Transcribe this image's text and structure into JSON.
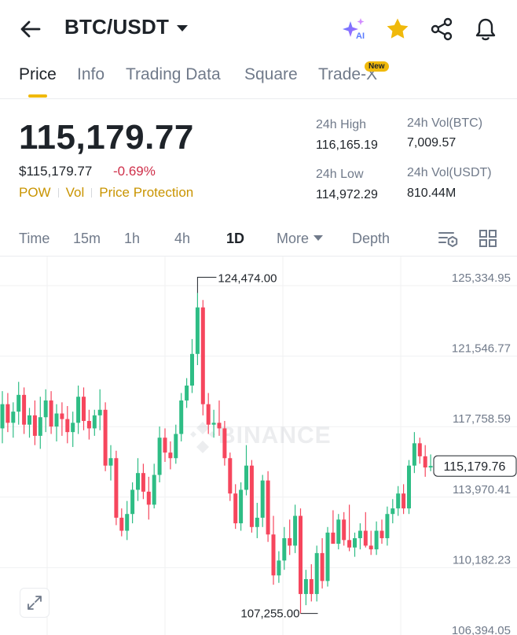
{
  "header": {
    "pair": "BTC/USDT",
    "icons": [
      "back-arrow-icon",
      "ai-sparkle-icon",
      "star-icon",
      "share-icon",
      "bell-icon"
    ],
    "ai_label": "AI",
    "star_color": "#f0b90b"
  },
  "tabs": [
    {
      "label": "Price",
      "active": true
    },
    {
      "label": "Info",
      "active": false
    },
    {
      "label": "Trading Data",
      "active": false
    },
    {
      "label": "Square",
      "active": false
    },
    {
      "label": "Trade-X",
      "active": false,
      "badge": "New"
    }
  ],
  "ticker": {
    "last_price": "115,179.77",
    "fiat_price": "$115,179.77",
    "change": "-0.69%",
    "tags": [
      "POW",
      "Vol",
      "Price Protection"
    ],
    "stats": {
      "high_label": "24h High",
      "high_value": "116,165.19",
      "low_label": "24h Low",
      "low_value": "114,972.29",
      "vol_base_label": "24h Vol(BTC)",
      "vol_base_value": "7,009.57",
      "vol_quote_label": "24h Vol(USDT)",
      "vol_quote_value": "810.44M"
    }
  },
  "intervals": {
    "items": [
      "Time",
      "15m",
      "1h",
      "4h",
      "1D"
    ],
    "active": "1D",
    "more_label": "More",
    "depth_label": "Depth",
    "icons": [
      "indicator-settings-icon",
      "grid-layout-icon"
    ]
  },
  "chart_data": {
    "type": "candlestick",
    "y_ticks": [
      "125,334.95",
      "121,546.77",
      "117,758.59",
      "113,970.41",
      "110,182.23",
      "106,394.05"
    ],
    "ylim": [
      106394.05,
      125334.95
    ],
    "max_label": "124,474.00",
    "min_label": "107,255.00",
    "current_price_label": "115,179.76",
    "current_price": 115179.76,
    "watermark": "BINANCE",
    "colors": {
      "up": "#2ebd85",
      "down": "#f6465d",
      "grid": "#f0f1f2"
    },
    "candles": [
      {
        "o": 117200,
        "h": 119200,
        "l": 116400,
        "c": 118500
      },
      {
        "o": 118500,
        "h": 119100,
        "l": 117000,
        "c": 117500
      },
      {
        "o": 117500,
        "h": 118600,
        "l": 116700,
        "c": 118100
      },
      {
        "o": 118100,
        "h": 119700,
        "l": 117400,
        "c": 119000
      },
      {
        "o": 119000,
        "h": 119400,
        "l": 116900,
        "c": 117400
      },
      {
        "o": 117400,
        "h": 118300,
        "l": 116700,
        "c": 117900
      },
      {
        "o": 117900,
        "h": 118700,
        "l": 116300,
        "c": 116800
      },
      {
        "o": 116800,
        "h": 118900,
        "l": 116100,
        "c": 117800
      },
      {
        "o": 117800,
        "h": 119300,
        "l": 117000,
        "c": 118700
      },
      {
        "o": 118700,
        "h": 119200,
        "l": 116900,
        "c": 117300
      },
      {
        "o": 117300,
        "h": 118500,
        "l": 116500,
        "c": 118000
      },
      {
        "o": 118000,
        "h": 118600,
        "l": 116800,
        "c": 117700
      },
      {
        "o": 117700,
        "h": 118400,
        "l": 116400,
        "c": 117000
      },
      {
        "o": 117000,
        "h": 118100,
        "l": 116200,
        "c": 117500
      },
      {
        "o": 117500,
        "h": 119500,
        "l": 116900,
        "c": 118900
      },
      {
        "o": 118900,
        "h": 119400,
        "l": 117100,
        "c": 117600
      },
      {
        "o": 117600,
        "h": 118200,
        "l": 116600,
        "c": 117200
      },
      {
        "o": 117200,
        "h": 118200,
        "l": 116800,
        "c": 117900
      },
      {
        "o": 117900,
        "h": 119300,
        "l": 117100,
        "c": 118200
      },
      {
        "o": 118200,
        "h": 118600,
        "l": 114900,
        "c": 115200
      },
      {
        "o": 115200,
        "h": 116300,
        "l": 114400,
        "c": 115600
      },
      {
        "o": 115600,
        "h": 116000,
        "l": 112000,
        "c": 112400
      },
      {
        "o": 112400,
        "h": 112900,
        "l": 111400,
        "c": 111700
      },
      {
        "o": 111700,
        "h": 113300,
        "l": 111200,
        "c": 112600
      },
      {
        "o": 112600,
        "h": 114300,
        "l": 112100,
        "c": 113900
      },
      {
        "o": 113900,
        "h": 115600,
        "l": 113300,
        "c": 114800
      },
      {
        "o": 114800,
        "h": 115300,
        "l": 113400,
        "c": 113800
      },
      {
        "o": 113800,
        "h": 114600,
        "l": 112300,
        "c": 113100
      },
      {
        "o": 113100,
        "h": 115300,
        "l": 112900,
        "c": 114700
      },
      {
        "o": 114700,
        "h": 117300,
        "l": 114300,
        "c": 116700
      },
      {
        "o": 116700,
        "h": 117200,
        "l": 115400,
        "c": 115900
      },
      {
        "o": 115900,
        "h": 116500,
        "l": 115000,
        "c": 115600
      },
      {
        "o": 115600,
        "h": 117400,
        "l": 115300,
        "c": 116900
      },
      {
        "o": 116900,
        "h": 119100,
        "l": 116500,
        "c": 118700
      },
      {
        "o": 118700,
        "h": 119900,
        "l": 118300,
        "c": 119500
      },
      {
        "o": 119500,
        "h": 122000,
        "l": 119100,
        "c": 121200
      },
      {
        "o": 121200,
        "h": 124474,
        "l": 120600,
        "c": 123700
      },
      {
        "o": 123700,
        "h": 124100,
        "l": 117900,
        "c": 118500
      },
      {
        "o": 118500,
        "h": 119100,
        "l": 116900,
        "c": 117400
      },
      {
        "o": 117400,
        "h": 118200,
        "l": 116700,
        "c": 117500
      },
      {
        "o": 117500,
        "h": 118700,
        "l": 116800,
        "c": 117200
      },
      {
        "o": 117200,
        "h": 117600,
        "l": 115200,
        "c": 115600
      },
      {
        "o": 115600,
        "h": 115900,
        "l": 113300,
        "c": 113700
      },
      {
        "o": 113700,
        "h": 114200,
        "l": 111800,
        "c": 112100
      },
      {
        "o": 112100,
        "h": 114300,
        "l": 111700,
        "c": 113900
      },
      {
        "o": 113900,
        "h": 116300,
        "l": 113600,
        "c": 115200
      },
      {
        "o": 115200,
        "h": 115500,
        "l": 111600,
        "c": 111900
      },
      {
        "o": 111900,
        "h": 113200,
        "l": 111300,
        "c": 112400
      },
      {
        "o": 112400,
        "h": 114700,
        "l": 111900,
        "c": 114400
      },
      {
        "o": 114400,
        "h": 114900,
        "l": 111100,
        "c": 111500
      },
      {
        "o": 111500,
        "h": 112500,
        "l": 108800,
        "c": 109300
      },
      {
        "o": 109300,
        "h": 110600,
        "l": 108900,
        "c": 110100
      },
      {
        "o": 110100,
        "h": 111900,
        "l": 109600,
        "c": 111300
      },
      {
        "o": 111300,
        "h": 112300,
        "l": 110400,
        "c": 110900
      },
      {
        "o": 110900,
        "h": 113100,
        "l": 110500,
        "c": 112500
      },
      {
        "o": 112500,
        "h": 112900,
        "l": 107255,
        "c": 108300
      },
      {
        "o": 108300,
        "h": 109600,
        "l": 107700,
        "c": 109100
      },
      {
        "o": 109100,
        "h": 109900,
        "l": 107900,
        "c": 108300
      },
      {
        "o": 108300,
        "h": 110900,
        "l": 107900,
        "c": 110500
      },
      {
        "o": 110500,
        "h": 111300,
        "l": 108600,
        "c": 109000
      },
      {
        "o": 109000,
        "h": 111900,
        "l": 108700,
        "c": 111600
      },
      {
        "o": 111600,
        "h": 112800,
        "l": 111100,
        "c": 111000
      },
      {
        "o": 111000,
        "h": 112600,
        "l": 110700,
        "c": 112300
      },
      {
        "o": 112300,
        "h": 112700,
        "l": 110900,
        "c": 111200
      },
      {
        "o": 111200,
        "h": 113100,
        "l": 110600,
        "c": 110800
      },
      {
        "o": 110800,
        "h": 111600,
        "l": 110300,
        "c": 111300
      },
      {
        "o": 111300,
        "h": 112100,
        "l": 110700,
        "c": 111700
      },
      {
        "o": 111700,
        "h": 112700,
        "l": 110800,
        "c": 110900
      },
      {
        "o": 110900,
        "h": 111700,
        "l": 110400,
        "c": 110700
      },
      {
        "o": 110700,
        "h": 112200,
        "l": 110400,
        "c": 111700
      },
      {
        "o": 111700,
        "h": 112300,
        "l": 111000,
        "c": 111300
      },
      {
        "o": 111300,
        "h": 113000,
        "l": 110900,
        "c": 112600
      },
      {
        "o": 112600,
        "h": 113400,
        "l": 112100,
        "c": 112900
      },
      {
        "o": 112900,
        "h": 114100,
        "l": 112500,
        "c": 113700
      },
      {
        "o": 113700,
        "h": 114200,
        "l": 112600,
        "c": 112900
      },
      {
        "o": 112900,
        "h": 115500,
        "l": 112600,
        "c": 115200
      },
      {
        "o": 115200,
        "h": 117000,
        "l": 114800,
        "c": 116400
      },
      {
        "o": 116400,
        "h": 116700,
        "l": 115300,
        "c": 115700
      },
      {
        "o": 115700,
        "h": 116300,
        "l": 114600,
        "c": 115100
      },
      {
        "o": 115100,
        "h": 115800,
        "l": 114900,
        "c": 115180
      }
    ]
  }
}
